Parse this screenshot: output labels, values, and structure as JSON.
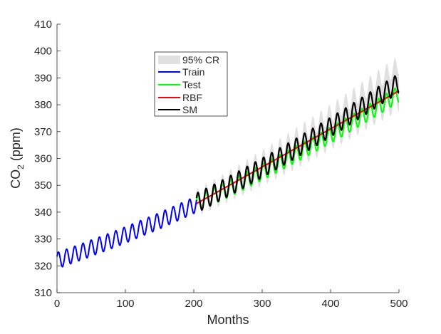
{
  "chart_data": {
    "type": "line",
    "xlabel": "Months",
    "ylabel_main": "CO",
    "ylabel_sub": "2",
    "ylabel_unit": " (ppm)",
    "xlim": [
      0,
      500
    ],
    "ylim": [
      310,
      410
    ],
    "xticks": [
      0,
      100,
      200,
      300,
      400,
      500
    ],
    "yticks": [
      310,
      320,
      330,
      340,
      350,
      360,
      370,
      380,
      390,
      400,
      410
    ],
    "grid": false,
    "legend_position": "upper-center-left",
    "legend": [
      "95% CR",
      "Train",
      "Test",
      "RBF",
      "SM"
    ],
    "colors": {
      "cr": "#e0e0e0",
      "train": "#0000ff",
      "test": "#00ff00",
      "rbf": "#ff0000",
      "sm": "#000000"
    },
    "seasonal_period_months": 12,
    "series": [
      {
        "name": "Train",
        "start_month": 0,
        "seasonal_amplitude": 3.0,
        "annual_means": [
          322.5,
          323.6,
          324.7,
          325.8,
          327.0,
          328.1,
          329.3,
          330.5,
          331.7,
          333.0,
          334.3,
          335.5,
          336.8,
          338.2,
          339.5,
          340.9,
          342.3
        ]
      },
      {
        "name": "Test",
        "start_month": 204,
        "seasonal_amplitude": 3.0,
        "annual_means": [
          343.7,
          345.1,
          346.6,
          348.0,
          349.5,
          351.0,
          352.6,
          354.1,
          355.7,
          357.3,
          358.9,
          360.6,
          362.2,
          363.9,
          365.6,
          367.3,
          369.0,
          370.8,
          372.6,
          374.4,
          376.2,
          378.1,
          379.9,
          381.8,
          383.7
        ]
      },
      {
        "name": "SM",
        "start_month": 204,
        "seasonal_amplitude": 3.6,
        "annual_means": [
          344.2,
          345.7,
          347.3,
          348.9,
          350.6,
          352.2,
          354.0,
          355.6,
          357.4,
          359.1,
          360.9,
          362.7,
          364.5,
          366.4,
          368.2,
          370.1,
          372.0,
          373.9,
          375.8,
          377.8,
          379.8,
          381.8,
          383.8,
          385.8,
          387.7
        ],
        "cr_halfwidth_start_end": [
          1.5,
          7.0
        ]
      },
      {
        "name": "RBF",
        "x": [
          204,
          500
        ],
        "y": [
          343.2,
          385.2
        ]
      }
    ]
  }
}
